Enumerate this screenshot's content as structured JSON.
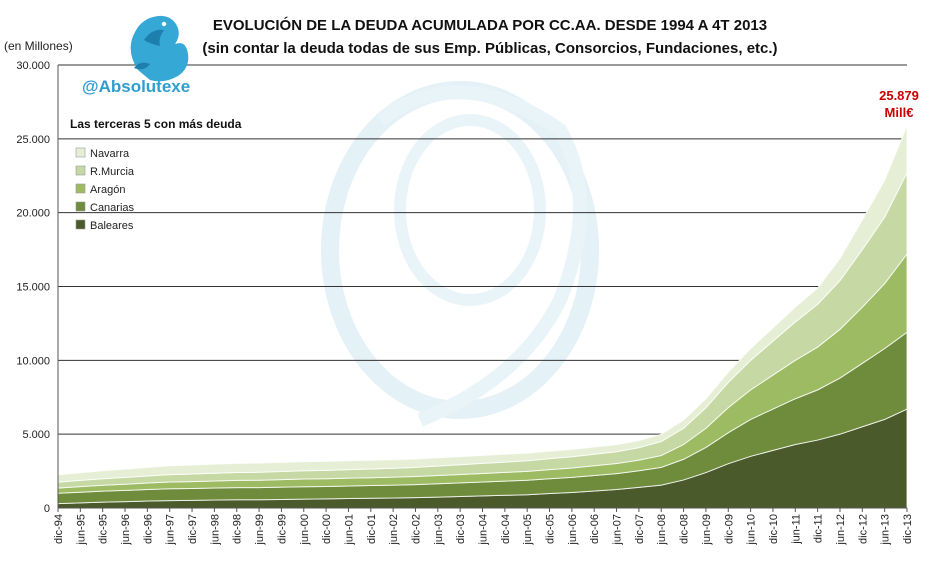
{
  "chart_data": {
    "type": "area",
    "stacked": true,
    "title": "EVOLUCIÓN DE LA DEUDA ACUMULADA POR CC.AA. DESDE 1994 A 4T 2013",
    "subtitle": "(sin contar la deuda todas de sus Emp. Públicas, Consorcios, Fundaciones, etc.)",
    "unit_label": "(en Millones)",
    "handle": "@Absolutexe",
    "legend_title": "Las terceras 5 con más deuda",
    "legend_placement": "top-left",
    "grid": true,
    "ylim": [
      0,
      30000
    ],
    "y_ticks": [
      "0",
      "5.000",
      "10.000",
      "15.000",
      "20.000",
      "25.000",
      "30.000"
    ],
    "x_tick_labels": [
      "dic-94",
      "jun-95",
      "dic-95",
      "jun-96",
      "dic-96",
      "jun-97",
      "dic-97",
      "jun-98",
      "dic-98",
      "jun-99",
      "dic-99",
      "jun-00",
      "dic-00",
      "jun-01",
      "dic-01",
      "jun-02",
      "dic-02",
      "jun-03",
      "dic-03",
      "jun-04",
      "dic-04",
      "jun-05",
      "dic-05",
      "jun-06",
      "dic-06",
      "jun-07",
      "dic-07",
      "jun-08",
      "dic-08",
      "jun-09",
      "dic-09",
      "jun-10",
      "dic-10",
      "jun-11",
      "dic-11",
      "jun-12",
      "dic-12",
      "jun-13",
      "dic-13"
    ],
    "x_years": [
      1994.92,
      1995.42,
      1995.92,
      1996.42,
      1996.92,
      1997.42,
      1997.92,
      1998.42,
      1998.92,
      1999.42,
      1999.92,
      2000.42,
      2000.92,
      2001.42,
      2001.92,
      2002.42,
      2002.92,
      2003.42,
      2003.92,
      2004.42,
      2004.92,
      2005.42,
      2005.92,
      2006.42,
      2006.92,
      2007.42,
      2007.92,
      2008.42,
      2008.92,
      2009.42,
      2009.92,
      2010.42,
      2010.92,
      2011.42,
      2011.92,
      2012.42,
      2012.92,
      2013.42,
      2013.92
    ],
    "series": [
      {
        "name": "Baleares",
        "color": "#4a5a2a",
        "values": [
          300,
          350,
          400,
          430,
          470,
          500,
          520,
          540,
          560,
          560,
          580,
          600,
          620,
          640,
          660,
          680,
          700,
          740,
          780,
          820,
          860,
          900,
          980,
          1050,
          1150,
          1250,
          1400,
          1550,
          1900,
          2400,
          3000,
          3500,
          3900,
          4300,
          4600,
          5000,
          5500,
          6000,
          6700
        ]
      },
      {
        "name": "Canarias",
        "color": "#6e8c3c",
        "values": [
          700,
          720,
          740,
          760,
          780,
          800,
          800,
          810,
          820,
          820,
          830,
          840,
          840,
          850,
          860,
          870,
          880,
          900,
          920,
          940,
          960,
          980,
          1000,
          1020,
          1050,
          1080,
          1120,
          1200,
          1400,
          1700,
          2100,
          2500,
          2800,
          3100,
          3400,
          3800,
          4300,
          4800,
          5200
        ]
      },
      {
        "name": "Aragón",
        "color": "#9dbb63",
        "values": [
          350,
          380,
          400,
          420,
          440,
          460,
          470,
          480,
          490,
          500,
          510,
          520,
          520,
          530,
          530,
          540,
          550,
          560,
          570,
          580,
          590,
          600,
          620,
          640,
          660,
          680,
          720,
          800,
          1000,
          1300,
          1700,
          2000,
          2300,
          2600,
          2900,
          3300,
          3800,
          4400,
          5300
        ]
      },
      {
        "name": "R.Murcia",
        "color": "#c6d9a4",
        "values": [
          400,
          420,
          440,
          460,
          480,
          500,
          510,
          520,
          530,
          540,
          550,
          560,
          570,
          580,
          590,
          600,
          620,
          640,
          660,
          680,
          700,
          720,
          740,
          760,
          780,
          800,
          850,
          950,
          1100,
          1400,
          1700,
          2000,
          2300,
          2600,
          2900,
          3300,
          3900,
          4500,
          5500
        ]
      },
      {
        "name": "Navarra",
        "color": "#e6efd6",
        "values": [
          500,
          520,
          540,
          560,
          580,
          600,
          610,
          620,
          620,
          620,
          620,
          620,
          610,
          600,
          590,
          580,
          570,
          560,
          550,
          540,
          530,
          520,
          510,
          500,
          490,
          480,
          480,
          500,
          550,
          600,
          700,
          800,
          900,
          1000,
          1100,
          1500,
          2000,
          2500,
          3179
        ]
      }
    ]
  },
  "callout": {
    "value": "25.879",
    "unit": "Mill€",
    "color": "#cc0000"
  },
  "colors": {
    "handle": "#2e9ed0",
    "watermark": "#cfe6f2",
    "grid": "#333333"
  },
  "icons": {
    "logo": "griffin-logo-icon"
  }
}
